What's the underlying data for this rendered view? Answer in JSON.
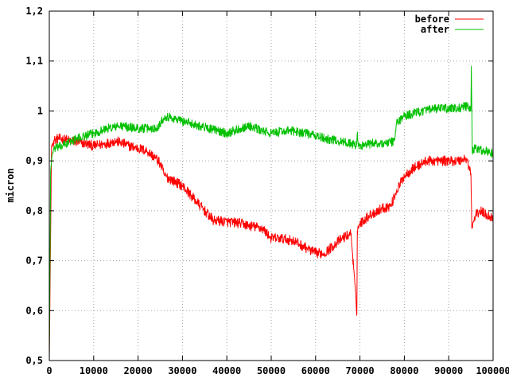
{
  "chart_data": {
    "type": "line",
    "title": "",
    "xlabel": "",
    "ylabel": "micron",
    "xlim": [
      0,
      100000
    ],
    "ylim": [
      0.5,
      1.2
    ],
    "grid": true,
    "legend_position": "top-right",
    "x_ticks": [
      "0",
      "10000",
      "20000",
      "30000",
      "40000",
      "50000",
      "60000",
      "70000",
      "80000",
      "90000",
      "100000"
    ],
    "y_ticks": [
      "0,5",
      "0,6",
      "0,7",
      "0,8",
      "0,9",
      "1",
      "1,1",
      "1,2"
    ],
    "series": [
      {
        "name": "before",
        "color": "#ff0000",
        "noise_amplitude": 0.01,
        "x": [
          0,
          500,
          1000,
          2000,
          5000,
          8000,
          10000,
          13000,
          15000,
          18000,
          20000,
          22000,
          24000,
          25000,
          26000,
          28000,
          30000,
          32000,
          34000,
          36000,
          37000,
          38000,
          40000,
          43000,
          45000,
          48000,
          50000,
          52000,
          55000,
          58000,
          60000,
          62000,
          64000,
          66000,
          68000,
          69300,
          69400,
          69600,
          70000,
          72000,
          75000,
          77000,
          78000,
          80000,
          82000,
          85000,
          88000,
          90000,
          92000,
          94000,
          95000,
          95200,
          96000,
          97000,
          100000
        ],
        "y": [
          0.5,
          0.93,
          0.94,
          0.945,
          0.94,
          0.935,
          0.93,
          0.935,
          0.94,
          0.93,
          0.925,
          0.92,
          0.905,
          0.895,
          0.87,
          0.86,
          0.85,
          0.83,
          0.81,
          0.79,
          0.78,
          0.78,
          0.778,
          0.775,
          0.77,
          0.765,
          0.745,
          0.745,
          0.74,
          0.725,
          0.715,
          0.715,
          0.73,
          0.745,
          0.755,
          0.595,
          0.76,
          0.765,
          0.775,
          0.79,
          0.805,
          0.81,
          0.835,
          0.87,
          0.885,
          0.9,
          0.9,
          0.9,
          0.9,
          0.905,
          0.875,
          0.765,
          0.79,
          0.8,
          0.785
        ]
      },
      {
        "name": "after",
        "color": "#00c000",
        "noise_amplitude": 0.009,
        "x": [
          0,
          300,
          600,
          1000,
          3000,
          5000,
          8000,
          10000,
          13000,
          16000,
          20000,
          24000,
          25000,
          26000,
          28000,
          30000,
          34000,
          38000,
          40000,
          43000,
          45000,
          48000,
          50000,
          53000,
          55000,
          58000,
          62000,
          65000,
          68000,
          69200,
          69400,
          69600,
          70000,
          73000,
          76000,
          77800,
          78200,
          80000,
          84000,
          88000,
          92000,
          94000,
          95000,
          95100,
          95300,
          96000,
          98000,
          100000
        ],
        "y": [
          0.5,
          0.88,
          0.91,
          0.925,
          0.93,
          0.94,
          0.95,
          0.955,
          0.965,
          0.97,
          0.965,
          0.965,
          0.975,
          0.99,
          0.985,
          0.98,
          0.97,
          0.96,
          0.955,
          0.965,
          0.97,
          0.96,
          0.955,
          0.96,
          0.96,
          0.955,
          0.945,
          0.94,
          0.935,
          0.93,
          0.955,
          0.93,
          0.93,
          0.935,
          0.935,
          0.94,
          0.975,
          0.99,
          1.0,
          1.005,
          1.005,
          1.01,
          1.0,
          1.09,
          0.92,
          0.925,
          0.92,
          0.915
        ]
      }
    ]
  }
}
